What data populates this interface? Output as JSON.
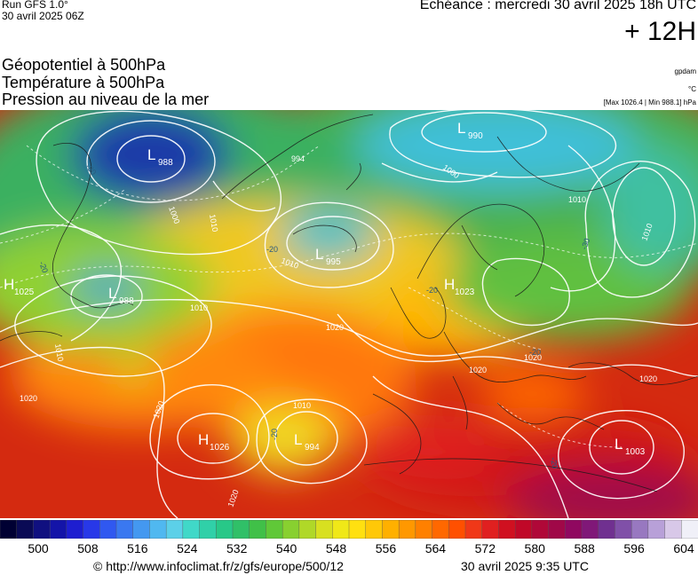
{
  "header": {
    "run_label": "Run GFS 1.0°",
    "run_date": "30 avril 2025 06Z",
    "echeance": "Echéance : mercredi 30 avril 2025 18h UTC",
    "lead_time": "+ 12H"
  },
  "layers": [
    "Géopotentiel à 500hPa",
    "Température à 500hPa",
    "Pression au niveau de la mer"
  ],
  "units": {
    "geopotential": "gpdam",
    "temperature": "°C",
    "pressure_range": "[Max 1026.4 | Min 988.1] hPa"
  },
  "pressure_centers": [
    {
      "type": "L",
      "value": "988"
    },
    {
      "type": "L",
      "value": "990"
    },
    {
      "type": "L",
      "value": "995"
    },
    {
      "type": "H",
      "value": "1025"
    },
    {
      "type": "L",
      "value": "988"
    },
    {
      "type": "H",
      "value": "1023"
    },
    {
      "type": "H",
      "value": "1026"
    },
    {
      "type": "L",
      "value": "994"
    },
    {
      "type": "L",
      "value": "1003"
    }
  ],
  "isobar_labels": [
    "994",
    "1000",
    "1010",
    "1000",
    "1010",
    "1010",
    "1010",
    "1020",
    "1010",
    "1020",
    "1020",
    "1010",
    "1020",
    "1020",
    "1020",
    "1010",
    "1020"
  ],
  "temperature_labels": [
    "-30",
    "-20",
    "-20",
    "-20",
    "-20",
    "-30",
    "-20",
    "-20"
  ],
  "scale": {
    "colors": [
      "#000033",
      "#0a0a55",
      "#101080",
      "#1414a8",
      "#1e1ed0",
      "#2838e8",
      "#3058f0",
      "#3a78f0",
      "#4498f0",
      "#50b8f0",
      "#5cd0e8",
      "#40d8c8",
      "#30d0a8",
      "#28c888",
      "#30c068",
      "#40c048",
      "#60c838",
      "#88d030",
      "#b0d828",
      "#d8e020",
      "#f0e818",
      "#ffe010",
      "#ffc808",
      "#ffb000",
      "#ff9800",
      "#ff8000",
      "#ff6800",
      "#ff5000",
      "#f03818",
      "#e02020",
      "#d01020",
      "#c00828",
      "#b00838",
      "#a00848",
      "#900860",
      "#801878",
      "#703090",
      "#8050a8",
      "#9878c0",
      "#b8a0d8",
      "#d8c8e8",
      "#f0f0f8"
    ],
    "labels": [
      "500",
      "508",
      "516",
      "524",
      "532",
      "540",
      "548",
      "556",
      "564",
      "572",
      "580",
      "588",
      "596",
      "604"
    ]
  },
  "footer": {
    "url": "© http://www.infoclimat.fr/z/gfs/europe/500/12",
    "date": "30 avril 2025  9:35 UTC"
  }
}
